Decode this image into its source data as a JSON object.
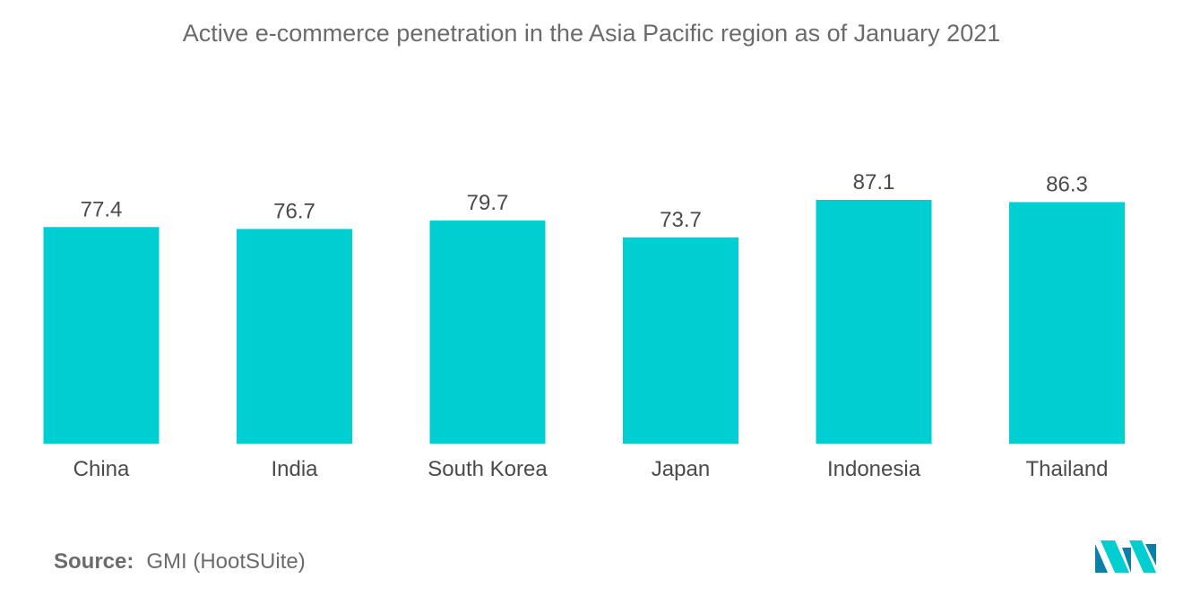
{
  "title": "Active e-commerce penetration in the Asia Pacific region as of January 2021",
  "source": {
    "label": "Source:",
    "text": "GMI (HootSUite)"
  },
  "logo": {
    "icon": "mordor-intelligence-logo-icon",
    "colors": [
      "#0a7fa8",
      "#00ced1"
    ]
  },
  "colors": {
    "bar": "#00ced1",
    "text": "#4a4a4a",
    "title": "#6b6b6b"
  },
  "chart_data": {
    "type": "bar",
    "title": "Active e-commerce penetration in the Asia Pacific region as of January 2021",
    "categories": [
      "China",
      "India",
      "South Korea",
      "Japan",
      "Indonesia",
      "Thailand"
    ],
    "values": [
      77.4,
      76.7,
      79.7,
      73.7,
      87.1,
      86.3
    ],
    "data_labels": [
      "77.4",
      "76.7",
      "79.7",
      "73.7",
      "87.1",
      "86.3"
    ],
    "xlabel": "",
    "ylabel": "",
    "ylim": [
      0,
      87.1
    ],
    "grid": false,
    "legend": "none"
  }
}
